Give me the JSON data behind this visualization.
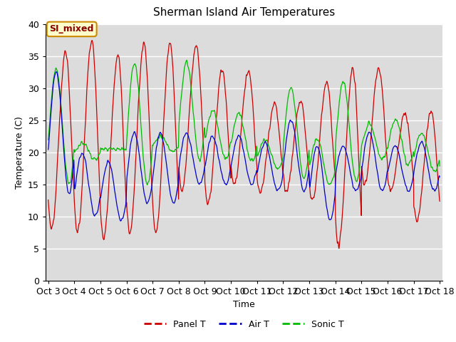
{
  "title": "Sherman Island Air Temperatures",
  "xlabel": "Time",
  "ylabel": "Temperature (C)",
  "ylim": [
    0,
    40
  ],
  "xlim_start": 3,
  "xlim_end": 18,
  "background_color": "#dcdcdc",
  "panel_color": "#cc0000",
  "air_color": "#0000cc",
  "sonic_color": "#00bb00",
  "annotation_text": "SI_mixed",
  "annotation_facecolor": "#ffffcc",
  "annotation_edgecolor": "#cc8800",
  "annotation_textcolor": "#8b0000",
  "xtick_labels": [
    "Oct 3",
    "Oct 4",
    "Oct 5",
    "Oct 6",
    "Oct 7",
    "Oct 8",
    "Oct 9",
    "Oct 10",
    "Oct 11",
    "Oct 12",
    "Oct 13",
    "Oct 14",
    "Oct 15",
    "Oct 16",
    "Oct 17",
    "Oct 18"
  ],
  "xtick_positions": [
    3,
    4,
    5,
    6,
    7,
    8,
    9,
    10,
    11,
    12,
    13,
    14,
    15,
    16,
    17,
    18
  ],
  "legend_entries": [
    "Panel T",
    "Air T",
    "Sonic T"
  ],
  "panel_peaks": [
    35.5,
    37.5,
    35.0,
    37.0,
    37.0,
    36.5,
    33.0,
    32.5,
    27.5,
    28.0,
    30.8,
    33.0,
    33.0,
    26.0,
    26.5,
    25.5
  ],
  "panel_lows": [
    8.0,
    7.5,
    6.5,
    7.5,
    7.5,
    14.0,
    12.0,
    15.0,
    14.0,
    14.0,
    12.5,
    5.5,
    15.0,
    14.0,
    9.5,
    10.0
  ],
  "air_peaks": [
    32.5,
    20.0,
    18.5,
    23.0,
    23.0,
    23.0,
    22.5,
    22.5,
    21.5,
    25.0,
    21.0,
    21.0,
    23.0,
    21.0,
    21.5,
    22.0
  ],
  "air_lows": [
    13.5,
    10.0,
    9.5,
    12.0,
    12.0,
    15.0,
    15.0,
    15.0,
    14.0,
    14.0,
    9.5,
    14.0,
    14.0,
    14.0,
    14.0,
    12.0
  ],
  "sonic_peaks": [
    33.0,
    21.5,
    20.5,
    34.0,
    22.5,
    34.0,
    26.5,
    26.0,
    22.0,
    30.0,
    22.0,
    31.0,
    24.5,
    25.0,
    23.0,
    23.0
  ],
  "sonic_lows": [
    15.0,
    19.0,
    20.5,
    15.0,
    20.0,
    19.0,
    19.0,
    18.5,
    17.5,
    16.0,
    15.0,
    15.5,
    19.0,
    18.0,
    17.0,
    14.5
  ]
}
